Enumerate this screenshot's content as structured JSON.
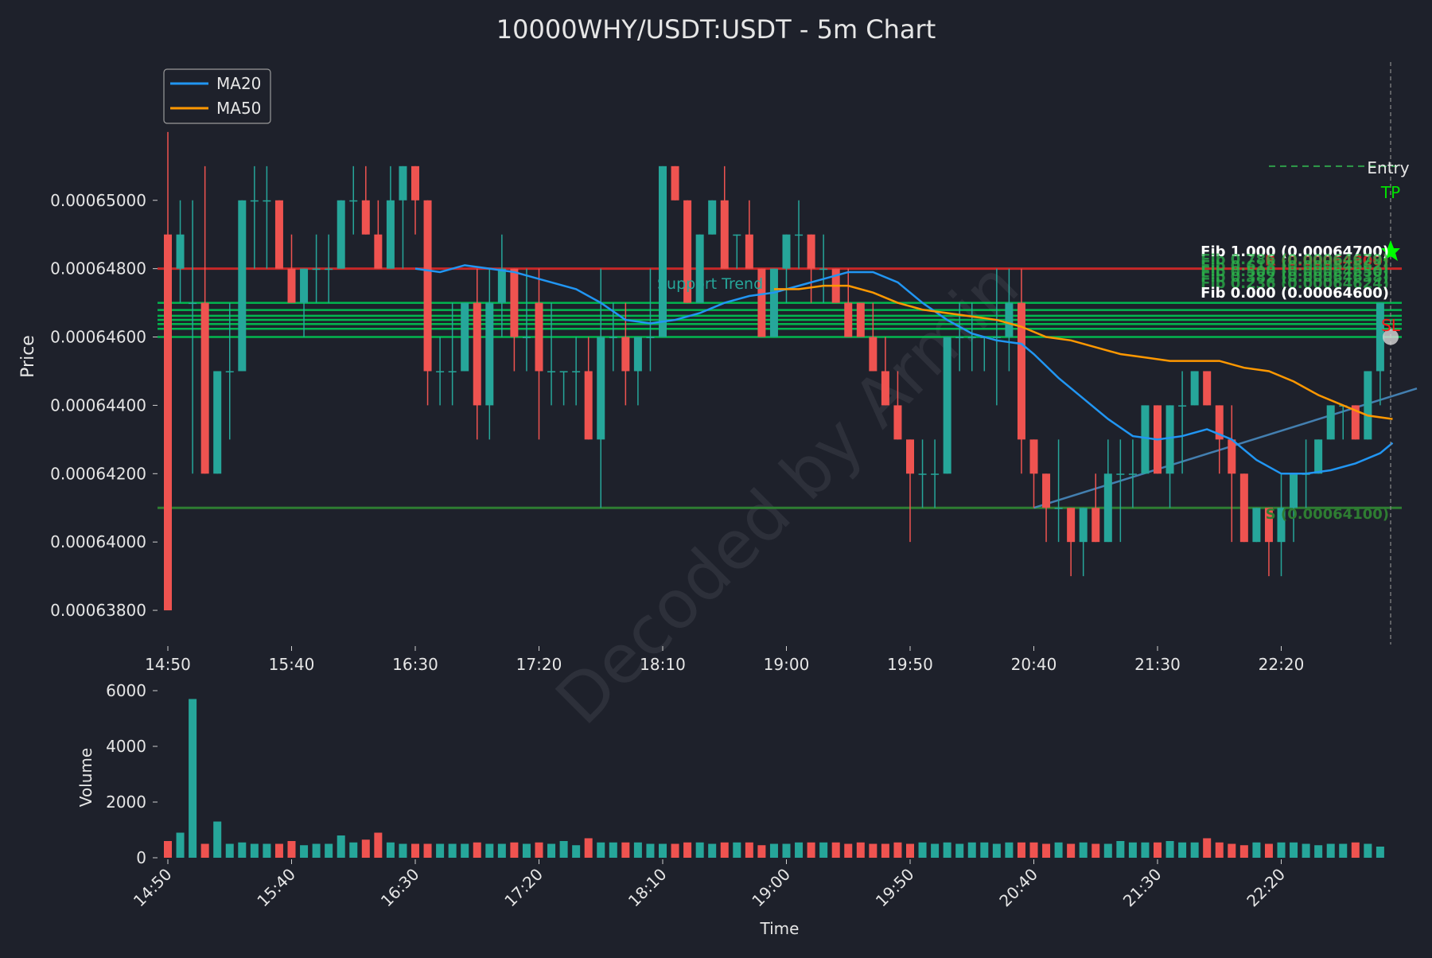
{
  "colors": {
    "background": "#1e212b",
    "text": "#e6e6e6",
    "up": "#26a69a",
    "down": "#ef5350",
    "ma20": "#2196f3",
    "ma50": "#ff9800",
    "resistance": "#c62828",
    "support": "#2e7d32",
    "fib": "#00c853",
    "trend": "#4a90c8",
    "watermark": "#3a3d47"
  },
  "chart_data": {
    "type": "candlestick",
    "title": "10000WHY/USDT:USDT - 5m Chart",
    "ylabel": "Price",
    "xlabel": "Time",
    "volume_ylabel": "Volume",
    "ylim": [
      0.000637,
      0.000654
    ],
    "volume_ylim": [
      0,
      6000
    ],
    "y_ticks": [
      "0.00063800",
      "0.00064000",
      "0.00064200",
      "0.00064400",
      "0.00064600",
      "0.00064800",
      "0.00065000"
    ],
    "y_tick_values": [
      0.000638,
      0.00064,
      0.000642,
      0.000644,
      0.000646,
      0.000648,
      0.00065
    ],
    "volume_ticks": [
      "0",
      "2000",
      "4000",
      "6000"
    ],
    "volume_tick_values": [
      0,
      2000,
      4000,
      6000
    ],
    "x_tick_labels": [
      "14:50",
      "15:40",
      "16:30",
      "17:20",
      "18:10",
      "19:00",
      "19:50",
      "20:40",
      "21:30",
      "22:20"
    ],
    "x_tick_index": [
      0,
      10,
      20,
      30,
      40,
      50,
      60,
      70,
      80,
      90
    ],
    "candles": [
      [
        0.000649,
        0.000652,
        0.000638,
        0.000638,
        600
      ],
      [
        0.000648,
        0.00065,
        0.000647,
        0.000649,
        900
      ],
      [
        0.000647,
        0.00065,
        0.000642,
        0.000647,
        5700
      ],
      [
        0.000647,
        0.000651,
        0.000642,
        0.000642,
        500
      ],
      [
        0.000642,
        0.000645,
        0.000642,
        0.000645,
        1300
      ],
      [
        0.000645,
        0.000647,
        0.000643,
        0.000645,
        500
      ],
      [
        0.000645,
        0.00065,
        0.000645,
        0.00065,
        550
      ],
      [
        0.00065,
        0.000651,
        0.000648,
        0.00065,
        500
      ],
      [
        0.00065,
        0.000651,
        0.000648,
        0.00065,
        500
      ],
      [
        0.00065,
        0.00065,
        0.000648,
        0.000648,
        500
      ],
      [
        0.000648,
        0.000649,
        0.000647,
        0.000647,
        600
      ],
      [
        0.000647,
        0.000648,
        0.000646,
        0.000648,
        450
      ],
      [
        0.000648,
        0.000649,
        0.000647,
        0.000648,
        500
      ],
      [
        0.000648,
        0.000649,
        0.000647,
        0.000648,
        500
      ],
      [
        0.000648,
        0.00065,
        0.000648,
        0.00065,
        800
      ],
      [
        0.00065,
        0.000651,
        0.000649,
        0.00065,
        550
      ],
      [
        0.00065,
        0.000651,
        0.000649,
        0.000649,
        650
      ],
      [
        0.000649,
        0.00065,
        0.000648,
        0.000648,
        900
      ],
      [
        0.000648,
        0.000651,
        0.000648,
        0.00065,
        550
      ],
      [
        0.00065,
        0.000651,
        0.000648,
        0.000651,
        500
      ],
      [
        0.000651,
        0.000651,
        0.000649,
        0.00065,
        500
      ],
      [
        0.00065,
        0.00065,
        0.000644,
        0.000645,
        500
      ],
      [
        0.000645,
        0.000646,
        0.000644,
        0.000645,
        500
      ],
      [
        0.000645,
        0.000647,
        0.000644,
        0.000645,
        500
      ],
      [
        0.000645,
        0.000647,
        0.000645,
        0.000647,
        500
      ],
      [
        0.000647,
        0.000648,
        0.000643,
        0.000644,
        550
      ],
      [
        0.000644,
        0.000648,
        0.000643,
        0.000647,
        500
      ],
      [
        0.000647,
        0.000649,
        0.000646,
        0.000648,
        500
      ],
      [
        0.000648,
        0.000648,
        0.000645,
        0.000646,
        550
      ],
      [
        0.000646,
        0.000648,
        0.000645,
        0.000646,
        500
      ],
      [
        0.000647,
        0.000648,
        0.000643,
        0.000645,
        550
      ],
      [
        0.000645,
        0.000647,
        0.000644,
        0.000645,
        500
      ],
      [
        0.000645,
        0.000645,
        0.000644,
        0.000645,
        600
      ],
      [
        0.000645,
        0.000646,
        0.000644,
        0.000645,
        450
      ],
      [
        0.000645,
        0.000646,
        0.000643,
        0.000643,
        700
      ],
      [
        0.000643,
        0.000648,
        0.000641,
        0.000646,
        550
      ],
      [
        0.000646,
        0.000647,
        0.000645,
        0.000646,
        550
      ],
      [
        0.000646,
        0.000647,
        0.000644,
        0.000645,
        550
      ],
      [
        0.000645,
        0.000646,
        0.000644,
        0.000646,
        550
      ],
      [
        0.000646,
        0.000648,
        0.000645,
        0.000646,
        500
      ],
      [
        0.000646,
        0.000651,
        0.000646,
        0.000651,
        500
      ],
      [
        0.000651,
        0.000651,
        0.00065,
        0.00065,
        500
      ],
      [
        0.00065,
        0.00065,
        0.000647,
        0.000647,
        550
      ],
      [
        0.000647,
        0.000649,
        0.000647,
        0.000649,
        550
      ],
      [
        0.000649,
        0.00065,
        0.000649,
        0.00065,
        500
      ],
      [
        0.00065,
        0.000651,
        0.000648,
        0.000648,
        550
      ],
      [
        0.000649,
        0.000649,
        0.000648,
        0.000649,
        550
      ],
      [
        0.000649,
        0.00065,
        0.000648,
        0.000648,
        550
      ],
      [
        0.000648,
        0.000648,
        0.000646,
        0.000646,
        450
      ],
      [
        0.000646,
        0.000648,
        0.000646,
        0.000648,
        500
      ],
      [
        0.000648,
        0.000649,
        0.000647,
        0.000649,
        500
      ],
      [
        0.000649,
        0.00065,
        0.000648,
        0.000649,
        550
      ],
      [
        0.000649,
        0.000649,
        0.000647,
        0.000648,
        550
      ],
      [
        0.000648,
        0.000649,
        0.000647,
        0.000648,
        550
      ],
      [
        0.000648,
        0.000648,
        0.000647,
        0.000647,
        550
      ],
      [
        0.000647,
        0.000648,
        0.000646,
        0.000646,
        500
      ],
      [
        0.000647,
        0.000647,
        0.000646,
        0.000646,
        550
      ],
      [
        0.000646,
        0.000647,
        0.000645,
        0.000645,
        500
      ],
      [
        0.000645,
        0.000646,
        0.000644,
        0.000644,
        500
      ],
      [
        0.000644,
        0.000645,
        0.000643,
        0.000643,
        550
      ],
      [
        0.000643,
        0.000643,
        0.00064,
        0.000642,
        500
      ],
      [
        0.000642,
        0.000643,
        0.000641,
        0.000642,
        550
      ],
      [
        0.000642,
        0.000643,
        0.000641,
        0.000642,
        500
      ],
      [
        0.000642,
        0.000646,
        0.000642,
        0.000646,
        550
      ],
      [
        0.000646,
        0.000647,
        0.000645,
        0.000646,
        500
      ],
      [
        0.000646,
        0.000647,
        0.000645,
        0.000646,
        550
      ],
      [
        0.000646,
        0.000646,
        0.000645,
        0.000646,
        550
      ],
      [
        0.000646,
        0.000648,
        0.000644,
        0.000646,
        500
      ],
      [
        0.000646,
        0.000648,
        0.000645,
        0.000647,
        550
      ],
      [
        0.000647,
        0.000648,
        0.000642,
        0.000643,
        550
      ],
      [
        0.000643,
        0.000643,
        0.000641,
        0.000642,
        550
      ],
      [
        0.000642,
        0.000642,
        0.00064,
        0.000641,
        500
      ],
      [
        0.000641,
        0.000643,
        0.00064,
        0.000641,
        550
      ],
      [
        0.000641,
        0.000641,
        0.000639,
        0.00064,
        500
      ],
      [
        0.00064,
        0.000641,
        0.000639,
        0.000641,
        550
      ],
      [
        0.000641,
        0.000642,
        0.00064,
        0.00064,
        500
      ],
      [
        0.00064,
        0.000643,
        0.00064,
        0.000642,
        500
      ],
      [
        0.000642,
        0.000643,
        0.00064,
        0.000642,
        600
      ],
      [
        0.000642,
        0.000643,
        0.000641,
        0.000642,
        550
      ],
      [
        0.000642,
        0.000644,
        0.000642,
        0.000644,
        550
      ],
      [
        0.000644,
        0.000644,
        0.000642,
        0.000642,
        550
      ],
      [
        0.000642,
        0.000644,
        0.000641,
        0.000644,
        600
      ],
      [
        0.000644,
        0.000645,
        0.000642,
        0.000644,
        550
      ],
      [
        0.000644,
        0.000645,
        0.000644,
        0.000645,
        550
      ],
      [
        0.000645,
        0.000645,
        0.000644,
        0.000644,
        700
      ],
      [
        0.000644,
        0.000644,
        0.000642,
        0.000643,
        550
      ],
      [
        0.000643,
        0.000644,
        0.00064,
        0.000642,
        500
      ],
      [
        0.000642,
        0.000642,
        0.00064,
        0.00064,
        450
      ],
      [
        0.00064,
        0.000641,
        0.00064,
        0.000641,
        550
      ],
      [
        0.000641,
        0.000641,
        0.000639,
        0.00064,
        500
      ],
      [
        0.00064,
        0.000642,
        0.000639,
        0.000641,
        550
      ],
      [
        0.000641,
        0.000642,
        0.00064,
        0.000642,
        550
      ],
      [
        0.000642,
        0.000643,
        0.000641,
        0.000642,
        500
      ],
      [
        0.000642,
        0.000643,
        0.000642,
        0.000643,
        450
      ],
      [
        0.000643,
        0.000644,
        0.000643,
        0.000644,
        500
      ],
      [
        0.000644,
        0.000644,
        0.000643,
        0.000644,
        500
      ],
      [
        0.000644,
        0.000644,
        0.000643,
        0.000643,
        550
      ],
      [
        0.000643,
        0.000645,
        0.000643,
        0.000645,
        500
      ],
      [
        0.000645,
        0.000647,
        0.000644,
        0.000647,
        400
      ]
    ],
    "ma20": [
      [
        20,
        0.000648
      ],
      [
        22,
        0.0006479
      ],
      [
        24,
        0.0006481
      ],
      [
        26,
        0.000648
      ],
      [
        28,
        0.0006479
      ],
      [
        30,
        0.0006477
      ],
      [
        33,
        0.0006474
      ],
      [
        35,
        0.000647
      ],
      [
        37,
        0.0006465
      ],
      [
        39,
        0.0006464
      ],
      [
        41,
        0.0006465
      ],
      [
        43,
        0.0006467
      ],
      [
        45,
        0.000647
      ],
      [
        47,
        0.0006472
      ],
      [
        49,
        0.0006473
      ],
      [
        51,
        0.0006475
      ],
      [
        53,
        0.0006477
      ],
      [
        55,
        0.0006479
      ],
      [
        57,
        0.0006479
      ],
      [
        59,
        0.0006476
      ],
      [
        61,
        0.000647
      ],
      [
        63,
        0.0006465
      ],
      [
        65,
        0.0006461
      ],
      [
        67,
        0.0006459
      ],
      [
        69,
        0.0006458
      ],
      [
        70,
        0.0006455
      ],
      [
        72,
        0.0006448
      ],
      [
        74,
        0.0006442
      ],
      [
        76,
        0.0006436
      ],
      [
        78,
        0.0006431
      ],
      [
        80,
        0.000643
      ],
      [
        82,
        0.0006431
      ],
      [
        84,
        0.0006433
      ],
      [
        86,
        0.000643
      ],
      [
        88,
        0.0006424
      ],
      [
        90,
        0.000642
      ],
      [
        92,
        0.000642
      ],
      [
        94,
        0.0006421
      ],
      [
        96,
        0.0006423
      ],
      [
        98,
        0.0006426
      ],
      [
        99,
        0.0006429
      ]
    ],
    "ma50": [
      [
        49,
        0.0006474
      ],
      [
        51,
        0.0006474
      ],
      [
        53,
        0.0006475
      ],
      [
        55,
        0.0006475
      ],
      [
        57,
        0.0006473
      ],
      [
        59,
        0.000647
      ],
      [
        61,
        0.0006468
      ],
      [
        63,
        0.0006467
      ],
      [
        65,
        0.0006466
      ],
      [
        67,
        0.0006465
      ],
      [
        69,
        0.0006463
      ],
      [
        71,
        0.000646
      ],
      [
        73,
        0.0006459
      ],
      [
        75,
        0.0006457
      ],
      [
        77,
        0.0006455
      ],
      [
        79,
        0.0006454
      ],
      [
        81,
        0.0006453
      ],
      [
        83,
        0.0006453
      ],
      [
        85,
        0.0006453
      ],
      [
        87,
        0.0006451
      ],
      [
        89,
        0.000645
      ],
      [
        91,
        0.0006447
      ],
      [
        93,
        0.0006443
      ],
      [
        95,
        0.000644
      ],
      [
        97,
        0.0006437
      ],
      [
        99,
        0.0006436
      ]
    ],
    "resistance": {
      "label": "R (0.00064800)",
      "value": 0.000648
    },
    "support": {
      "label": "S (0.00064100)",
      "value": 0.000641
    },
    "fib_levels": [
      {
        "label": "Fib 1.000 (0.00064700)",
        "value": 0.000647
      },
      {
        "label": "Fib 0.786 (0.00064679)",
        "value": 0.00064679
      },
      {
        "label": "Fib 0.618 (0.00064662)",
        "value": 0.00064662
      },
      {
        "label": "Fib 0.500 (0.00064650)",
        "value": 0.0006465
      },
      {
        "label": "Fib 0.382 (0.00064638)",
        "value": 0.00064638
      },
      {
        "label": "Fib 0.236 (0.00064624)",
        "value": 0.00064624
      },
      {
        "label": "Fib 0.000 (0.00064600)",
        "value": 0.000646
      }
    ],
    "support_trend": {
      "label": "Support Trend",
      "from": [
        70,
        0.000641
      ],
      "to": [
        100,
        0.0006444
      ]
    },
    "markers": {
      "entry_label": "Entry",
      "tp_label": "TP",
      "sl_label": "SL",
      "entry_index": 100,
      "entry_price": 0.000647,
      "tp_price": 0.000651,
      "sl_price": 0.000646
    },
    "legend": [
      {
        "name": "MA20",
        "color": "#2196f3"
      },
      {
        "name": "MA50",
        "color": "#ff9800"
      }
    ],
    "legend_position": "upper-left",
    "watermark": "Decoded by Armin"
  }
}
